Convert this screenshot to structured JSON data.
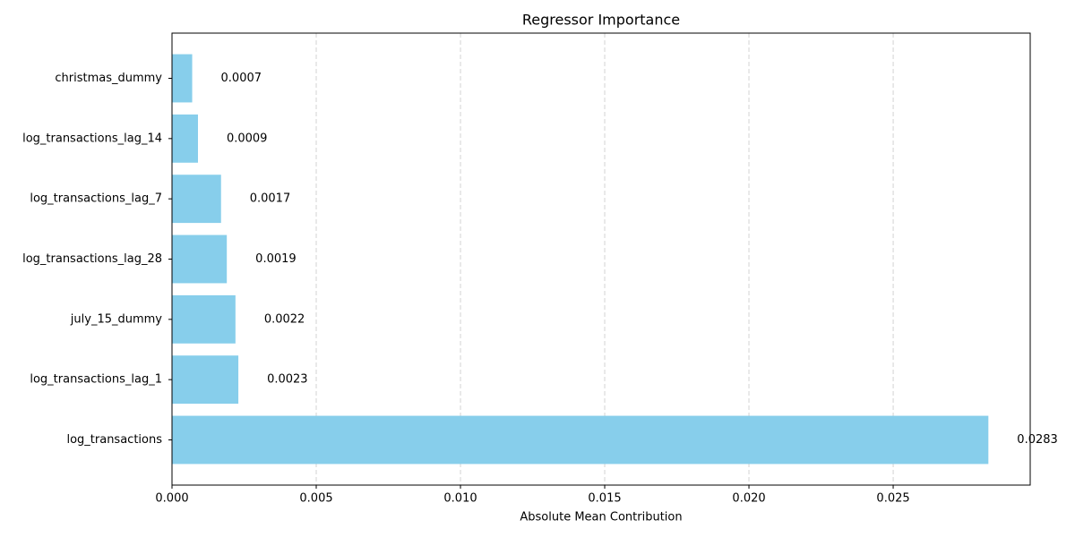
{
  "chart_data": {
    "type": "barh",
    "title": "Regressor Importance",
    "x_label": "Absolute Mean Contribution",
    "categories": [
      "christmas_dummy",
      "log_transactions_lag_14",
      "log_transactions_lag_7",
      "log_transactions_lag_28",
      "july_15_dummy",
      "log_transactions_lag_1",
      "log_transactions"
    ],
    "values": [
      0.0007,
      0.0009,
      0.0017,
      0.0019,
      0.0022,
      0.0023,
      0.0283
    ],
    "color": "#87ceeb",
    "xlim": [
      0,
      0.02975
    ],
    "xticks": [
      {
        "value": 0,
        "label": "0.000"
      },
      {
        "value": 0.005,
        "label": "0.005"
      },
      {
        "value": 0.01,
        "label": "0.010"
      },
      {
        "value": 0.015,
        "label": "0.015"
      },
      {
        "value": 0.02,
        "label": "0.020"
      },
      {
        "value": 0.025,
        "label": "0.025"
      }
    ],
    "grid": true
  }
}
